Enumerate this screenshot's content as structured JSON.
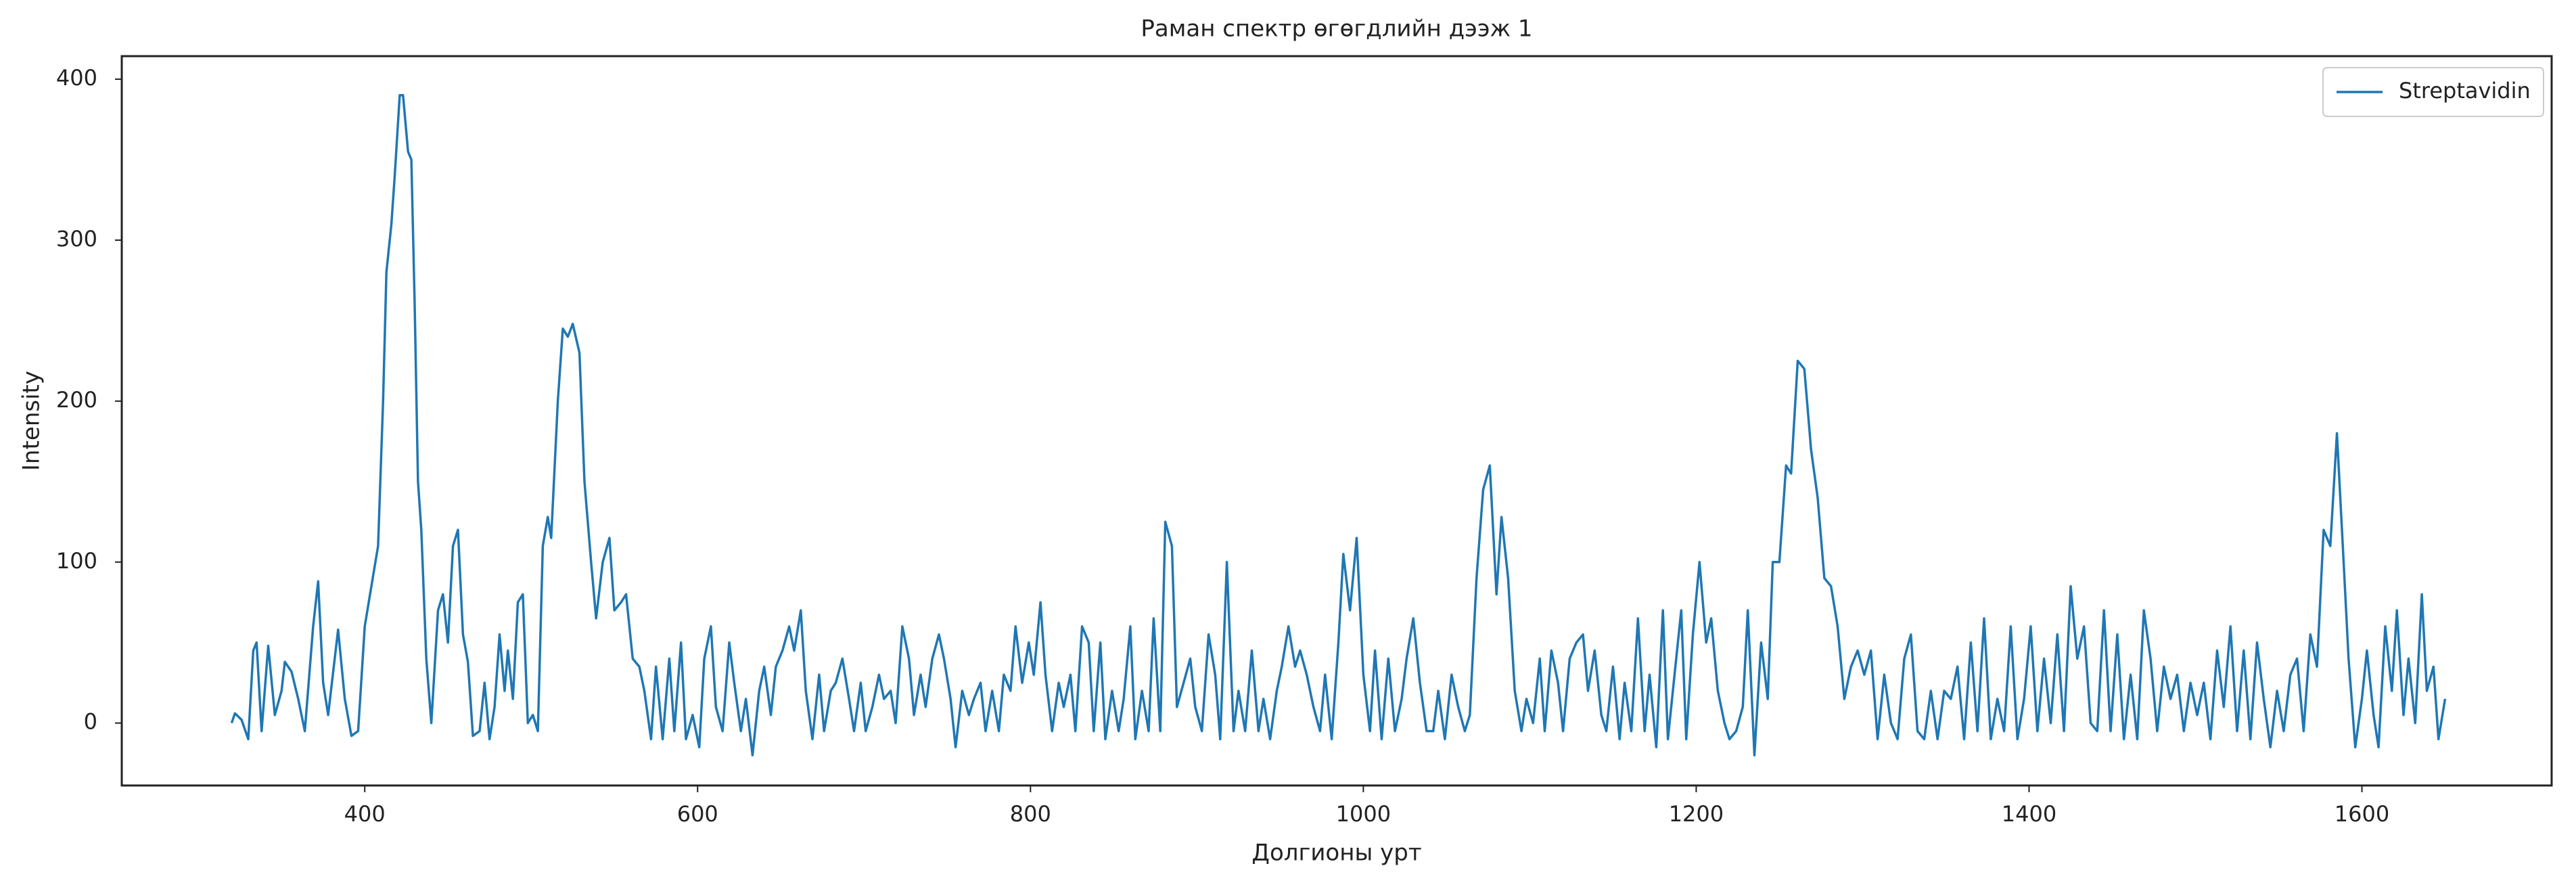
{
  "chart_data": {
    "type": "line",
    "title": "Раман спектр өгөгдлийн дээж 1",
    "xlabel": "Долгионы урт",
    "ylabel": "Intensity",
    "x": [
      320,
      322,
      326,
      330,
      333,
      335,
      338,
      342,
      346,
      350,
      352,
      356,
      360,
      364,
      369,
      372,
      375,
      378,
      384,
      388,
      392,
      396,
      400,
      404,
      408,
      411,
      413,
      416,
      418,
      421,
      423,
      426,
      428,
      430,
      432,
      434,
      437,
      440,
      444,
      447,
      450,
      453,
      456,
      459,
      462,
      465,
      469,
      472,
      475,
      478,
      481,
      484,
      486,
      489,
      492,
      495,
      498,
      501,
      504,
      507,
      510,
      512,
      516,
      519,
      522,
      525,
      529,
      532,
      536,
      539,
      543,
      547,
      550,
      554,
      557,
      561,
      565,
      568,
      572,
      575,
      579,
      583,
      586,
      590,
      593,
      597,
      601,
      604,
      608,
      611,
      615,
      619,
      622,
      626,
      629,
      633,
      637,
      640,
      644,
      647,
      651,
      655,
      658,
      662,
      665,
      669,
      673,
      676,
      680,
      683,
      687,
      691,
      694,
      698,
      701,
      705,
      709,
      712,
      716,
      719,
      723,
      727,
      730,
      734,
      737,
      741,
      745,
      748,
      752,
      755,
      759,
      763,
      766,
      770,
      773,
      777,
      781,
      784,
      788,
      791,
      795,
      799,
      802,
      806,
      809,
      813,
      817,
      820,
      824,
      827,
      831,
      835,
      838,
      842,
      845,
      849,
      853,
      856,
      860,
      863,
      867,
      871,
      874,
      878,
      881,
      885,
      888,
      892,
      896,
      899,
      903,
      907,
      911,
      914,
      918,
      922,
      925,
      929,
      933,
      937,
      940,
      944,
      948,
      951,
      955,
      959,
      962,
      966,
      970,
      974,
      977,
      981,
      985,
      988,
      992,
      996,
      1000,
      1004,
      1007,
      1011,
      1015,
      1019,
      1023,
      1026,
      1030,
      1034,
      1038,
      1042,
      1045,
      1049,
      1053,
      1057,
      1061,
      1064,
      1068,
      1072,
      1076,
      1080,
      1083,
      1087,
      1091,
      1095,
      1098,
      1102,
      1106,
      1109,
      1113,
      1117,
      1120,
      1124,
      1128,
      1132,
      1135,
      1139,
      1143,
      1146,
      1150,
      1154,
      1157,
      1161,
      1165,
      1169,
      1172,
      1176,
      1180,
      1183,
      1187,
      1191,
      1194,
      1198,
      1202,
      1206,
      1209,
      1213,
      1217,
      1220,
      1224,
      1228,
      1231,
      1235,
      1239,
      1243,
      1246,
      1250,
      1254,
      1257,
      1261,
      1265,
      1269,
      1273,
      1277,
      1281,
      1285,
      1289,
      1293,
      1297,
      1301,
      1305,
      1309,
      1313,
      1317,
      1321,
      1325,
      1329,
      1333,
      1337,
      1341,
      1345,
      1349,
      1353,
      1357,
      1361,
      1365,
      1369,
      1373,
      1377,
      1381,
      1385,
      1389,
      1393,
      1397,
      1401,
      1405,
      1409,
      1413,
      1417,
      1421,
      1425,
      1429,
      1433,
      1437,
      1441,
      1445,
      1449,
      1453,
      1457,
      1461,
      1465,
      1469,
      1473,
      1477,
      1481,
      1485,
      1489,
      1493,
      1497,
      1501,
      1505,
      1509,
      1513,
      1517,
      1521,
      1525,
      1529,
      1533,
      1537,
      1541,
      1545,
      1549,
      1553,
      1557,
      1561,
      1565,
      1569,
      1573,
      1577,
      1581,
      1585,
      1589,
      1592,
      1596,
      1600,
      1603,
      1607,
      1610,
      1614,
      1618,
      1621,
      1625,
      1628,
      1632,
      1636,
      1639,
      1643,
      1646,
      1650
    ],
    "series": [
      {
        "name": "Streptavidin",
        "color": "#1f77b4",
        "values": [
          0,
          6,
          2,
          -10,
          45,
          50,
          -5,
          48,
          5,
          20,
          38,
          32,
          15,
          -5,
          60,
          88,
          25,
          5,
          58,
          15,
          -8,
          -5,
          60,
          85,
          110,
          200,
          280,
          310,
          340,
          390,
          390,
          355,
          350,
          260,
          150,
          120,
          40,
          0,
          70,
          80,
          50,
          110,
          120,
          55,
          38,
          -8,
          -5,
          25,
          -10,
          10,
          55,
          20,
          45,
          15,
          75,
          80,
          0,
          5,
          -5,
          110,
          128,
          115,
          200,
          245,
          240,
          248,
          230,
          150,
          100,
          65,
          100,
          115,
          70,
          75,
          80,
          40,
          35,
          20,
          -10,
          35,
          -10,
          40,
          -5,
          50,
          -10,
          5,
          -15,
          40,
          60,
          10,
          -5,
          50,
          25,
          -5,
          15,
          -20,
          20,
          35,
          5,
          35,
          45,
          60,
          45,
          70,
          20,
          -10,
          30,
          -5,
          20,
          25,
          40,
          15,
          -5,
          25,
          -5,
          10,
          30,
          15,
          20,
          0,
          60,
          40,
          5,
          30,
          10,
          40,
          55,
          40,
          15,
          -15,
          20,
          5,
          15,
          25,
          -5,
          20,
          -5,
          30,
          20,
          60,
          25,
          50,
          30,
          75,
          30,
          -5,
          25,
          10,
          30,
          -5,
          60,
          50,
          -5,
          50,
          -10,
          20,
          -5,
          15,
          60,
          -10,
          20,
          -5,
          65,
          -5,
          125,
          110,
          10,
          25,
          40,
          10,
          -5,
          55,
          30,
          -10,
          100,
          -5,
          20,
          -5,
          45,
          -5,
          15,
          -10,
          20,
          35,
          60,
          35,
          45,
          30,
          10,
          -5,
          30,
          -10,
          50,
          105,
          70,
          115,
          30,
          -5,
          45,
          -10,
          40,
          -5,
          15,
          40,
          65,
          25,
          -5,
          -5,
          20,
          -10,
          30,
          10,
          -5,
          5,
          90,
          145,
          160,
          80,
          128,
          90,
          20,
          -5,
          15,
          0,
          40,
          -5,
          45,
          25,
          -5,
          40,
          50,
          55,
          20,
          45,
          5,
          -5,
          35,
          -10,
          25,
          -5,
          65,
          -5,
          30,
          -15,
          70,
          -10,
          30,
          70,
          -10,
          55,
          100,
          50,
          65,
          20,
          0,
          -10,
          -5,
          10,
          70,
          -20,
          50,
          15,
          100,
          100,
          160,
          155,
          225,
          220,
          170,
          140,
          90,
          85,
          60,
          15,
          35,
          45,
          30,
          45,
          -10,
          30,
          0,
          -10,
          40,
          55,
          -5,
          -10,
          20,
          -10,
          20,
          15,
          35,
          -10,
          50,
          -5,
          65,
          -10,
          15,
          -5,
          60,
          -10,
          15,
          60,
          -5,
          40,
          0,
          55,
          -5,
          85,
          40,
          60,
          0,
          -5,
          70,
          -5,
          55,
          -10,
          30,
          -10,
          70,
          40,
          -5,
          35,
          15,
          30,
          -5,
          25,
          5,
          25,
          -10,
          45,
          10,
          60,
          -5,
          45,
          -10,
          50,
          15,
          -15,
          20,
          -5,
          30,
          40,
          -5,
          55,
          35,
          120,
          110,
          180,
          100,
          40,
          -15,
          15,
          45,
          5,
          -15,
          60,
          20,
          70,
          5,
          40,
          0,
          80,
          20,
          35,
          -10,
          15
        ]
      }
    ],
    "xlim": [
      254,
      1714
    ],
    "ylim": [
      -38.8,
      414.3
    ],
    "xticks": [
      400,
      600,
      800,
      1000,
      1200,
      1400,
      1600
    ],
    "yticks": [
      0,
      100,
      200,
      300,
      400
    ],
    "grid": false,
    "legend": "upper right"
  }
}
